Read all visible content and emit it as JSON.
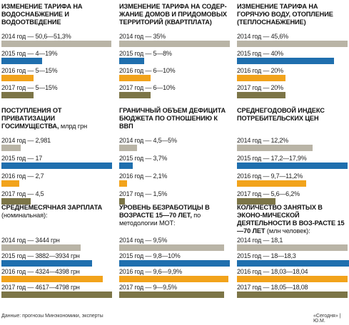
{
  "chart_data": [
    {
      "type": "bar",
      "title": "ИЗМЕНЕНИЕ ТАРИФА НА ВОДОСНАБЖЕНИЕ И ВОДООТВЕДЕНИЕ",
      "unit": "",
      "rows": [
        {
          "label": "2014 год — 50,6—51,3%",
          "value": 51
        },
        {
          "label": "2015 год — 4—19%",
          "value": 19
        },
        {
          "label": "2016 год — 5—15%",
          "value": 15
        },
        {
          "label": "2017 год — 5—15%",
          "value": 15
        }
      ],
      "max": 51.3
    },
    {
      "type": "bar",
      "title": "ИЗМЕНЕНИЕ ТАРИФА НА СОДЕР-ЖАНИЕ ДОМОВ И ПРИДОМОВЫХ ТЕРРИТОРИЙ (КВАРТПЛАТА)",
      "unit": "",
      "rows": [
        {
          "label": "2014 год — 35%",
          "value": 35
        },
        {
          "label": "2015 год — 5—8%",
          "value": 8
        },
        {
          "label": "2016 год — 6—10%",
          "value": 10
        },
        {
          "label": "2017 год — 6—10%",
          "value": 10
        }
      ],
      "max": 35
    },
    {
      "type": "bar",
      "title": "ИЗМЕНЕНИЕ ТАРИФА НА ГОРЯЧУЮ ВОДУ, ОТОПЛЕНИЕ (ТЕПЛОСНАБЖЕНИЕ)",
      "unit": "",
      "rows": [
        {
          "label": "2014 год — 45,6%",
          "value": 45.6
        },
        {
          "label": "2015 год — 40%",
          "value": 40
        },
        {
          "label": "2016 год — 20%",
          "value": 20
        },
        {
          "label": "2017 год — 20%",
          "value": 20
        }
      ],
      "max": 45.6
    },
    {
      "type": "bar",
      "title": "ПОСТУПЛЕНИЯ ОТ ПРИВАТИЗАЦИИ ГОСИМУЩЕСТВА,",
      "unit": "млрд грн",
      "rows": [
        {
          "label": "2014 год — 2,981",
          "value": 2.981
        },
        {
          "label": "2015 год — 17",
          "value": 17
        },
        {
          "label": "2016 год — 2,7",
          "value": 2.7
        },
        {
          "label": "2017 год — 4,5",
          "value": 4.5
        }
      ],
      "max": 17
    },
    {
      "type": "bar",
      "title": "ГРАНИЧНЫЙ ОБЪЕМ ДЕФИЦИТА БЮДЖЕТА ПО ОТНОШЕНИЮ К ВВП",
      "unit": "",
      "rows": [
        {
          "label": "2014 год — 4,5—5%",
          "value": 5
        },
        {
          "label": "2015 год — 3,7%",
          "value": 3.7
        },
        {
          "label": "2016 год — 2,1%",
          "value": 2.1
        },
        {
          "label": "2017 год — 1,5%",
          "value": 1.5
        }
      ],
      "max": 31
    },
    {
      "type": "bar",
      "title": "СРЕДНЕГОДОВОЙ ИНДЕКС ПОТРЕБИТЕЛЬСКИХ ЦЕН",
      "unit": "",
      "rows": [
        {
          "label": "2014 год — 12,2%",
          "value": 12.2
        },
        {
          "label": "2015 год — 17,2—17,9%",
          "value": 17.9
        },
        {
          "label": "2016 год — 9,7—11,2%",
          "value": 11.2
        },
        {
          "label": "2017 год — 5,6—6,2%",
          "value": 6.2
        }
      ],
      "max": 17.9
    },
    {
      "type": "bar",
      "title": "СРЕДНЕМЕСЯЧНАЯ ЗАРПЛАТА",
      "unit": "(номинальная):",
      "rows": [
        {
          "label": "2014 год — 3444 грн",
          "value": 3444
        },
        {
          "label": "2015 год — 3882—3934 грн",
          "value": 3934
        },
        {
          "label": "2016 год — 4324—4398 грн",
          "value": 4398
        },
        {
          "label": "2017 год — 4617—4798 грн",
          "value": 4798
        }
      ],
      "max": 4798
    },
    {
      "type": "bar",
      "title": "УРОВЕНЬ БЕЗРАБОТИЦЫ В ВОЗРАСТЕ 15—70 ЛЕТ,",
      "unit": "по методологии МОТ:",
      "rows": [
        {
          "label": "2014 год — 9,5%",
          "value": 9.5
        },
        {
          "label": "2015 год — 9,8—10%",
          "value": 10
        },
        {
          "label": "2016 год — 9,6—9,9%",
          "value": 9.9
        },
        {
          "label": "2017 год — 9—9,5%",
          "value": 9.5
        }
      ],
      "max": 10
    },
    {
      "type": "bar",
      "title": "КОЛИЧЕСТВО ЗАНЯТЫХ В ЭКОНО-МИЧЕСКОЙ ДЕЯТЕЛЬНОСТИ В ВОЗ-РАСТЕ 15—70 ЛЕТ",
      "unit": "(млн человек):",
      "rows": [
        {
          "label": "2014 год — 18,1",
          "value": 18.1
        },
        {
          "label": "2015 год — 18—18,3",
          "value": 18.3
        },
        {
          "label": "2016 год — 18,03—18,04",
          "value": 18.04
        },
        {
          "label": "2017 год — 18,05—18,08",
          "value": 18.08
        }
      ],
      "max": 18.08
    }
  ],
  "footer": {
    "source": "Данные: прогнозы Минэкономики, эксперты",
    "credit": "«Сегодня» | Ю.М."
  },
  "colors": {
    "y2014": "#b9b4a6",
    "y2015": "#1f6fae",
    "y2016": "#f2a31b",
    "y2017": "#7c7547"
  }
}
